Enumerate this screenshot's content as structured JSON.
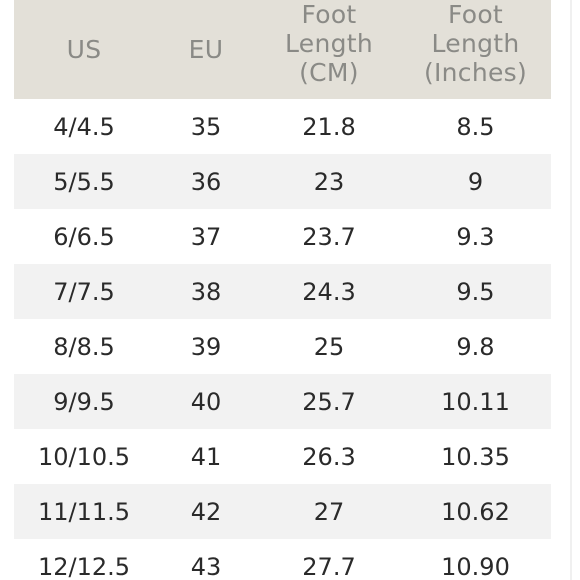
{
  "table": {
    "headers": [
      "US",
      "EU",
      "Foot\nLength\n(CM)",
      "Foot\nLength\n(Inches)"
    ],
    "header_lines": {
      "us": "US",
      "eu": "EU",
      "cm": [
        "Foot",
        "Length",
        "(CM)"
      ],
      "inches": [
        "Foot",
        "Length",
        "(Inches)"
      ]
    },
    "rows": [
      [
        "4/4.5",
        "35",
        "21.8",
        "8.5"
      ],
      [
        "5/5.5",
        "36",
        "23",
        "9"
      ],
      [
        "6/6.5",
        "37",
        "23.7",
        "9.3"
      ],
      [
        "7/7.5",
        "38",
        "24.3",
        "9.5"
      ],
      [
        "8/8.5",
        "39",
        "25",
        "9.8"
      ],
      [
        "9/9.5",
        "40",
        "25.7",
        "10.11"
      ],
      [
        "10/10.5",
        "41",
        "26.3",
        "10.35"
      ],
      [
        "11/11.5",
        "42",
        "27",
        "10.62"
      ],
      [
        "12/12.5",
        "43",
        "27.7",
        "10.90"
      ]
    ]
  },
  "colors": {
    "header_bg": "#e3e0d8",
    "header_text": "#8a8a86",
    "row_alt_bg": "#f2f2f2",
    "body_text": "#2a2a2a"
  }
}
